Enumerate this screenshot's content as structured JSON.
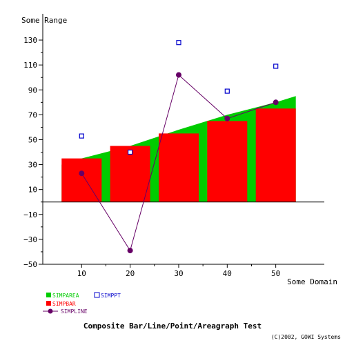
{
  "chart_data": {
    "type": "composite",
    "title": "Composite Bar/Line/Point/Areagraph Test",
    "ylabel": "Some Range",
    "xlabel": "Some Domain",
    "copyright": "(C)2002, GOWI Systems",
    "ylim": [
      -50,
      140
    ],
    "xlim": [
      2,
      60
    ],
    "yticks": [
      -50,
      -30,
      -10,
      10,
      30,
      50,
      70,
      90,
      110,
      130
    ],
    "xticks": [
      10,
      20,
      30,
      40,
      50
    ],
    "x": [
      10,
      20,
      30,
      40,
      50
    ],
    "grid": false,
    "zero_line": true,
    "series": [
      {
        "name": "SIMPAREA",
        "type": "area",
        "color": "#00cc00",
        "values": [
          35,
          45,
          58,
          70,
          80
        ]
      },
      {
        "name": "SIMPBAR",
        "type": "bar",
        "color": "#ff0000",
        "values": [
          35,
          45,
          55,
          65,
          75
        ]
      },
      {
        "name": "SIMPPT",
        "type": "scatter",
        "color": "#0000cc",
        "values": [
          53,
          40,
          128,
          89,
          109
        ]
      },
      {
        "name": "SIMPLINE",
        "type": "line",
        "color": "#660066",
        "values": [
          23,
          -39,
          102,
          67,
          80
        ]
      }
    ]
  }
}
